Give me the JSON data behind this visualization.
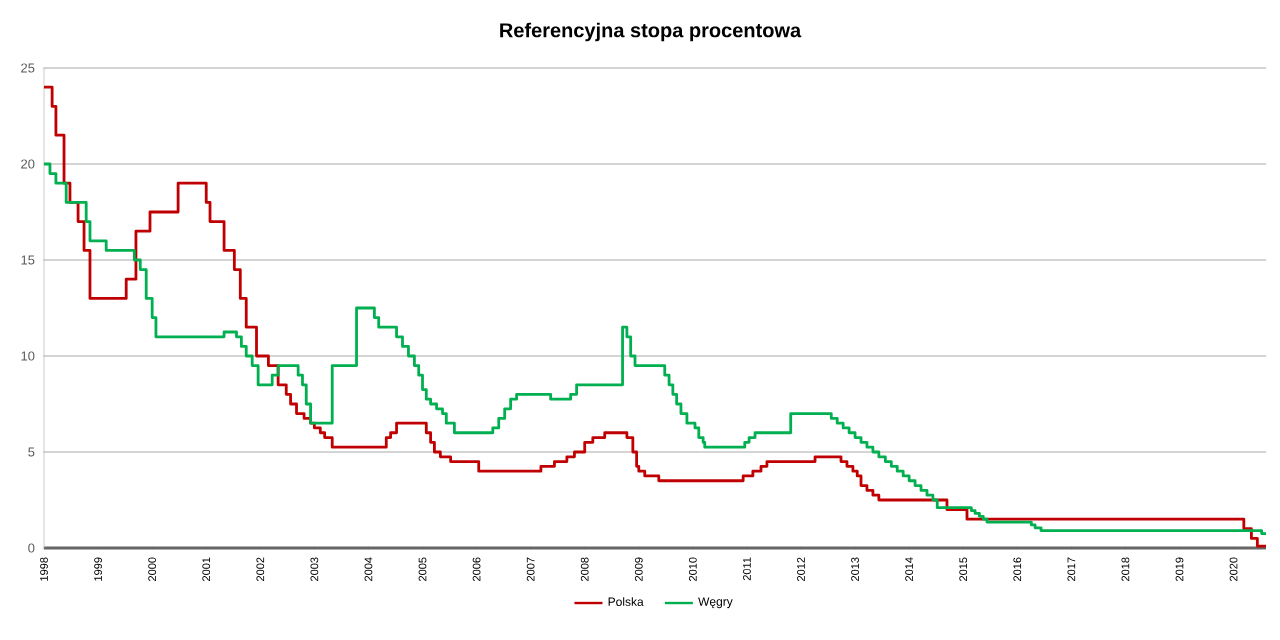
{
  "chart_data": {
    "type": "step",
    "title": "Referencyjna stopa procentowa",
    "xlim": [
      1998,
      2020.6
    ],
    "xticks": [
      1998,
      1999,
      2000,
      2001,
      2002,
      2003,
      2004,
      2005,
      2006,
      2007,
      2008,
      2009,
      2010,
      2011,
      2012,
      2013,
      2014,
      2015,
      2016,
      2017,
      2018,
      2019,
      2020
    ],
    "ylim": [
      0,
      25
    ],
    "yticks": [
      0,
      5,
      10,
      15,
      20,
      25
    ],
    "grid": "y",
    "legend": "bottom",
    "series": [
      {
        "name": "Polska",
        "color": "#c00000",
        "x": [
          1998.0,
          1998.15,
          1998.22,
          1998.37,
          1998.48,
          1998.63,
          1998.74,
          1998.85,
          1999.52,
          1999.7,
          1999.96,
          2000.48,
          2001.0,
          2001.07,
          2001.33,
          2001.52,
          2001.63,
          2001.74,
          2001.93,
          2002.15,
          2002.33,
          2002.48,
          2002.56,
          2002.67,
          2002.81,
          2002.93,
          2003.0,
          2003.11,
          2003.19,
          2003.33,
          2004.33,
          2004.41,
          2004.52,
          2005.07,
          2005.15,
          2005.22,
          2005.33,
          2005.52,
          2006.04,
          2007.19,
          2007.44,
          2007.67,
          2007.81,
          2008.0,
          2008.15,
          2008.37,
          2008.78,
          2008.89,
          2008.96,
          2009.0,
          2009.11,
          2009.37,
          2010.93,
          2011.11,
          2011.26,
          2011.37,
          2012.26,
          2012.74,
          2012.85,
          2012.96,
          2013.04,
          2013.11,
          2013.22,
          2013.33,
          2013.44,
          2014.7,
          2015.07,
          2020.19,
          2020.33,
          2020.44,
          2020.6
        ],
        "values": [
          24,
          23,
          21.5,
          19,
          18,
          17,
          15.5,
          13,
          14,
          16.5,
          17.5,
          19,
          18,
          17,
          15.5,
          14.5,
          13,
          11.5,
          10,
          9.5,
          8.5,
          8,
          7.5,
          7,
          6.75,
          6.5,
          6.25,
          6,
          5.75,
          5.25,
          5.75,
          6,
          6.5,
          6,
          5.5,
          5,
          4.75,
          4.5,
          4,
          4.25,
          4.5,
          4.75,
          5,
          5.5,
          5.75,
          6,
          5.75,
          5,
          4.25,
          4,
          3.75,
          3.5,
          3.75,
          4,
          4.25,
          4.5,
          4.75,
          4.5,
          4.25,
          4,
          3.75,
          3.25,
          3,
          2.75,
          2.5,
          2,
          1.5,
          1,
          0.5,
          0.1,
          0.1
        ]
      },
      {
        "name": "Węgry",
        "color": "#00b050",
        "x": [
          1998.0,
          1998.11,
          1998.22,
          1998.41,
          1998.78,
          1998.85,
          1999.15,
          1999.67,
          1999.78,
          1999.89,
          2000.0,
          2000.07,
          2001.33,
          2001.56,
          2001.65,
          2001.74,
          2001.85,
          2001.96,
          2002.22,
          2002.33,
          2002.7,
          2002.78,
          2002.85,
          2002.93,
          2003.33,
          2003.78,
          2004.11,
          2004.19,
          2004.52,
          2004.63,
          2004.74,
          2004.85,
          2004.93,
          2005.0,
          2005.07,
          2005.15,
          2005.26,
          2005.37,
          2005.44,
          2005.59,
          2006.3,
          2006.41,
          2006.52,
          2006.63,
          2006.74,
          2007.37,
          2007.44,
          2007.74,
          2007.85,
          2008.3,
          2008.7,
          2008.78,
          2008.85,
          2008.93,
          2009.48,
          2009.56,
          2009.63,
          2009.7,
          2009.78,
          2009.89,
          2010.04,
          2010.11,
          2010.19,
          2010.22,
          2010.96,
          2011.04,
          2011.15,
          2011.81,
          2012.56,
          2012.67,
          2012.78,
          2012.89,
          2013.0,
          2013.11,
          2013.22,
          2013.33,
          2013.44,
          2013.56,
          2013.67,
          2013.78,
          2013.89,
          2014.0,
          2014.11,
          2014.22,
          2014.33,
          2014.44,
          2014.52,
          2015.15,
          2015.22,
          2015.3,
          2015.37,
          2015.44,
          2016.26,
          2016.33,
          2016.44,
          2016.52,
          2020.52,
          2020.6
        ],
        "values": [
          20,
          19.5,
          19,
          18,
          17,
          16,
          15.5,
          15,
          14.5,
          13,
          12,
          11,
          11.25,
          11,
          10.5,
          10,
          9.5,
          8.5,
          9,
          9.5,
          9,
          8.5,
          7.5,
          6.5,
          9.5,
          12.5,
          12,
          11.5,
          11,
          10.5,
          10,
          9.5,
          9,
          8.25,
          7.75,
          7.5,
          7.25,
          7,
          6.5,
          6,
          6.25,
          6.75,
          7.25,
          7.75,
          8,
          7.75,
          7.75,
          8,
          8.5,
          8.5,
          11.5,
          11,
          10,
          9.5,
          9,
          8.5,
          8,
          7.5,
          7,
          6.5,
          6.25,
          5.75,
          5.5,
          5.25,
          5.5,
          5.75,
          6,
          7,
          6.75,
          6.5,
          6.25,
          6,
          5.75,
          5.5,
          5.25,
          5,
          4.75,
          4.5,
          4.25,
          4,
          3.75,
          3.5,
          3.25,
          3,
          2.75,
          2.5,
          2.1,
          1.95,
          1.8,
          1.65,
          1.5,
          1.35,
          1.2,
          1.05,
          0.9,
          0.9,
          0.75,
          0.75
        ]
      }
    ]
  }
}
